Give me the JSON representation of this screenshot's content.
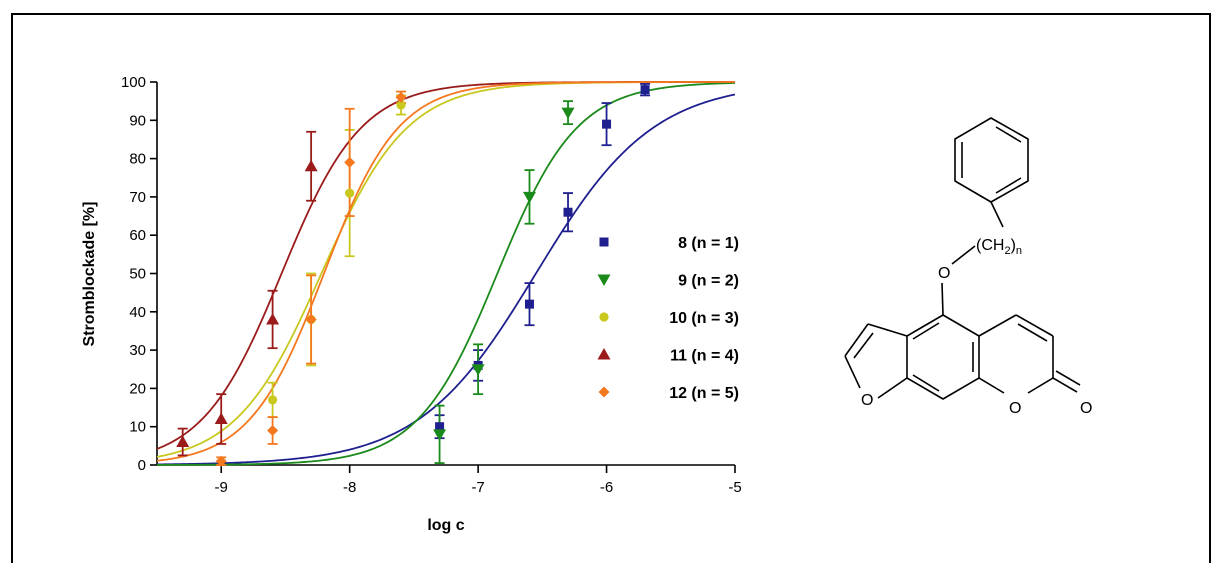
{
  "chart_data": {
    "type": "scatter",
    "title": "",
    "xlabel": "log c",
    "ylabel": "Stromblockade [%]",
    "xlim": [
      -9.5,
      -5
    ],
    "ylim": [
      0,
      100
    ],
    "xticks": [
      -9,
      -8,
      -7,
      -6,
      -5
    ],
    "yticks": [
      0,
      10,
      20,
      30,
      40,
      50,
      60,
      70,
      80,
      90,
      100
    ],
    "grid": false,
    "legend_position": "right-inside",
    "series": [
      {
        "name": "8 (n = 1)",
        "name_num": "8",
        "name_rest": " (n = 1)",
        "color": "#1f1f8f",
        "marker": "square",
        "points": [
          {
            "x": -7.3,
            "y": 10,
            "err": 3
          },
          {
            "x": -7.0,
            "y": 26,
            "err": 4
          },
          {
            "x": -6.6,
            "y": 42,
            "err": 5.5
          },
          {
            "x": -6.3,
            "y": 66,
            "err": 5
          },
          {
            "x": -6.0,
            "y": 89,
            "err": 5.5
          },
          {
            "x": -5.7,
            "y": 98,
            "err": 1.5
          }
        ],
        "fit": {
          "logEC50": -6.55,
          "hill": 0.95
        }
      },
      {
        "name": "9 (n = 2)",
        "name_num": "9",
        "name_rest": " (n = 2)",
        "color": "#1a8a1a",
        "marker": "triangle-down",
        "points": [
          {
            "x": -7.3,
            "y": 8,
            "err": 7.5
          },
          {
            "x": -7.0,
            "y": 25,
            "err": 6.5
          },
          {
            "x": -6.6,
            "y": 70,
            "err": 7
          },
          {
            "x": -6.3,
            "y": 92,
            "err": 3
          }
        ],
        "fit": {
          "logEC50": -6.85,
          "hill": 1.4
        }
      },
      {
        "name": "10 (n = 3)",
        "name_num": "10",
        "name_rest": " (n = 3)",
        "color": "#c8c81e",
        "marker": "circle",
        "points": [
          {
            "x": -8.6,
            "y": 17,
            "err": 4.5
          },
          {
            "x": -8.3,
            "y": 38,
            "err": 12
          },
          {
            "x": -8.0,
            "y": 71,
            "err": 16.5
          },
          {
            "x": -7.6,
            "y": 94,
            "err": 2.5
          }
        ],
        "fit": {
          "logEC50": -8.22,
          "hill": 1.3
        }
      },
      {
        "name": "11 (n = 4)",
        "name_num": "11",
        "name_rest": " (n = 4)",
        "color": "#9b1b1b",
        "marker": "triangle-up",
        "points": [
          {
            "x": -9.3,
            "y": 6,
            "err": 3.5
          },
          {
            "x": -9.0,
            "y": 12,
            "err": 6.5
          },
          {
            "x": -8.6,
            "y": 38,
            "err": 7.5
          },
          {
            "x": -8.3,
            "y": 78,
            "err": 9
          }
        ],
        "fit": {
          "logEC50": -8.53,
          "hill": 1.4
        }
      },
      {
        "name": "12 (n = 5)",
        "name_num": "12",
        "name_rest": " (n = 5)",
        "color": "#f5781e",
        "marker": "diamond",
        "points": [
          {
            "x": -9.0,
            "y": 1,
            "err": 1
          },
          {
            "x": -8.6,
            "y": 9,
            "err": 3.5
          },
          {
            "x": -8.3,
            "y": 38,
            "err": 11.5
          },
          {
            "x": -8.0,
            "y": 79,
            "err": 14
          },
          {
            "x": -7.6,
            "y": 96,
            "err": 1.5
          }
        ],
        "fit": {
          "logEC50": -8.2,
          "hill": 1.5
        }
      }
    ]
  },
  "structure": {
    "name": "furocoumarin-phenylalkoxy-structure",
    "chain_label": "(CH",
    "chain_sub": "2",
    "chain_close": ")",
    "chain_n": "n",
    "oxygen_label": "O"
  }
}
